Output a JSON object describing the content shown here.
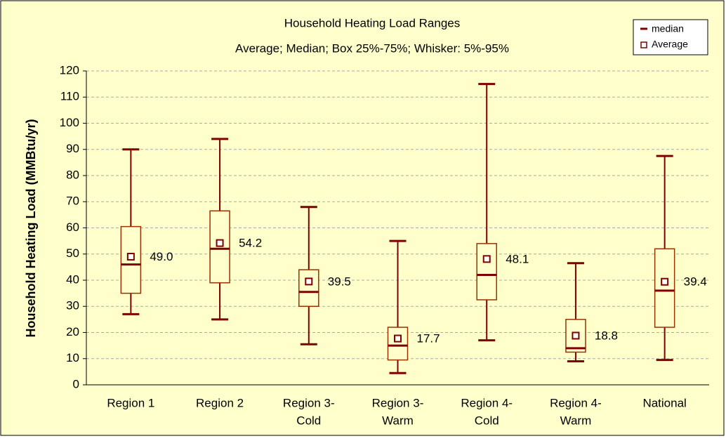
{
  "chart_data": {
    "type": "box",
    "title": "Household Heating Load Ranges",
    "subtitle": "Average; Median; Box 25%-75%; Whisker: 5%-95%",
    "y_label": "Household Heating Load (MMBtu/yr)",
    "categories": [
      [
        "Region 1"
      ],
      [
        "Region 2"
      ],
      [
        "Region 3-",
        "Cold"
      ],
      [
        "Region 3-",
        "Warm"
      ],
      [
        "Region 4-",
        "Cold"
      ],
      [
        "Region 4-",
        "Warm"
      ],
      [
        "National"
      ]
    ],
    "whisker_low": [
      27,
      25,
      15.5,
      4.5,
      17,
      9,
      9.5
    ],
    "q1": [
      35,
      39,
      30,
      9.5,
      32.5,
      12.5,
      22
    ],
    "median": [
      46,
      52,
      35.5,
      15,
      42,
      14,
      36
    ],
    "q3": [
      60.5,
      66.5,
      44,
      22,
      54,
      25,
      52
    ],
    "whisker_high": [
      90,
      94,
      68,
      55,
      115,
      46.5,
      87.5
    ],
    "average": [
      49.0,
      54.2,
      39.5,
      17.7,
      48.1,
      18.8,
      39.4
    ],
    "value_labels": [
      "49.0",
      "54.2",
      "39.5",
      "17.7",
      "48.1",
      "18.8",
      "39.4"
    ],
    "legend": [
      "median",
      "Average"
    ],
    "legend_position": "top-right",
    "box_color": "#993300",
    "whisker_color": "#800000",
    "ylim": [
      0,
      120
    ],
    "yticks": [
      0,
      10,
      20,
      30,
      40,
      50,
      60,
      70,
      80,
      90,
      100,
      110,
      120
    ],
    "grid": true
  }
}
